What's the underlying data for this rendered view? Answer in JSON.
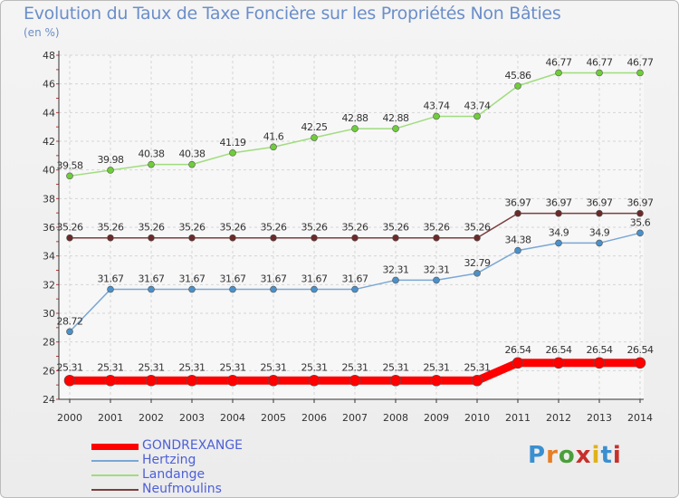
{
  "title": "Evolution du Taux de Taxe Foncière sur les Propriétés Non Bâties",
  "unit_label": "(en %)",
  "logo": {
    "text": "Proxiti",
    "colors": [
      "#3a8fd0",
      "#e87d23",
      "#4a9f3a",
      "#c7302b",
      "#e0b11b",
      "#3a8fd0",
      "#c7302b"
    ]
  },
  "chart_data": {
    "type": "line",
    "title": "Evolution du Taux de Taxe Foncière sur les Propriétés Non Bâties",
    "ylabel": "(en %)",
    "xlabel": "",
    "ylim": [
      24,
      48
    ],
    "yticks": [
      24,
      26,
      28,
      30,
      32,
      34,
      36,
      38,
      40,
      42,
      44,
      46,
      48
    ],
    "grid": true,
    "legend": "bottom-left",
    "x": [
      "2000",
      "2001",
      "2002",
      "2003",
      "2004",
      "2005",
      "2006",
      "2007",
      "2008",
      "2009",
      "2010",
      "2011",
      "2012",
      "2013",
      "2014"
    ],
    "series": [
      {
        "name": "GONDREXANGE",
        "color": "#ff0000",
        "values": [
          25.31,
          25.31,
          25.31,
          25.31,
          25.31,
          25.31,
          25.31,
          25.31,
          25.31,
          25.31,
          25.31,
          26.54,
          26.54,
          26.54,
          26.54
        ],
        "labels": [
          "25.31",
          "25.31",
          "25.31",
          "25.31",
          "25.31",
          "25.31",
          "25.31",
          "25.31",
          "25.31",
          "25.31",
          "25.31",
          "26.54",
          "26.54",
          "26.54",
          "26.54"
        ]
      },
      {
        "name": "Hertzing",
        "color": "#7aa7d4",
        "values": [
          28.72,
          31.67,
          31.67,
          31.67,
          31.67,
          31.67,
          31.67,
          31.67,
          32.31,
          32.31,
          32.79,
          34.38,
          34.9,
          34.9,
          35.6
        ],
        "labels": [
          "28.72",
          "31.67",
          "31.67",
          "31.67",
          "31.67",
          "31.67",
          "31.67",
          "31.67",
          "32.31",
          "32.31",
          "32.79",
          "34.38",
          "34.9",
          "34.9",
          "35.6"
        ]
      },
      {
        "name": "Landange",
        "color": "#a0dc7e",
        "values": [
          39.58,
          39.98,
          40.38,
          40.38,
          41.19,
          41.6,
          42.25,
          42.88,
          42.88,
          43.74,
          43.74,
          45.86,
          46.77,
          46.77,
          46.77
        ],
        "labels": [
          "39.58",
          "39.98",
          "40.38",
          "40.38",
          "41.19",
          "41.6",
          "42.25",
          "42.88",
          "42.88",
          "43.74",
          "43.74",
          "45.86",
          "46.77",
          "46.77",
          "46.77"
        ]
      },
      {
        "name": "Neufmoulins",
        "color": "#7a3f3f",
        "values": [
          35.26,
          35.26,
          35.26,
          35.26,
          35.26,
          35.26,
          35.26,
          35.26,
          35.26,
          35.26,
          35.26,
          36.97,
          36.97,
          36.97,
          36.97
        ],
        "labels": [
          "35.26",
          "35.26",
          "35.26",
          "35.26",
          "35.26",
          "35.26",
          "35.26",
          "35.26",
          "35.26",
          "35.26",
          "35.26",
          "36.97",
          "36.97",
          "36.97",
          "36.97"
        ]
      }
    ]
  }
}
